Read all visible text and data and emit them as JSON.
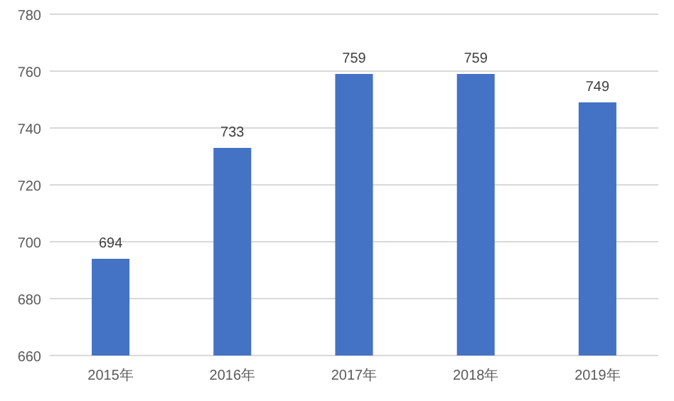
{
  "chart_data": {
    "type": "bar",
    "categories": [
      "2015年",
      "2016年",
      "2017年",
      "2018年",
      "2019年"
    ],
    "values": [
      694,
      733,
      759,
      759,
      749
    ],
    "color": "#4472c4",
    "ylim": [
      660,
      780
    ],
    "yticks": [
      660,
      680,
      700,
      720,
      740,
      760,
      780
    ],
    "grid": "y",
    "data_labels": true
  }
}
